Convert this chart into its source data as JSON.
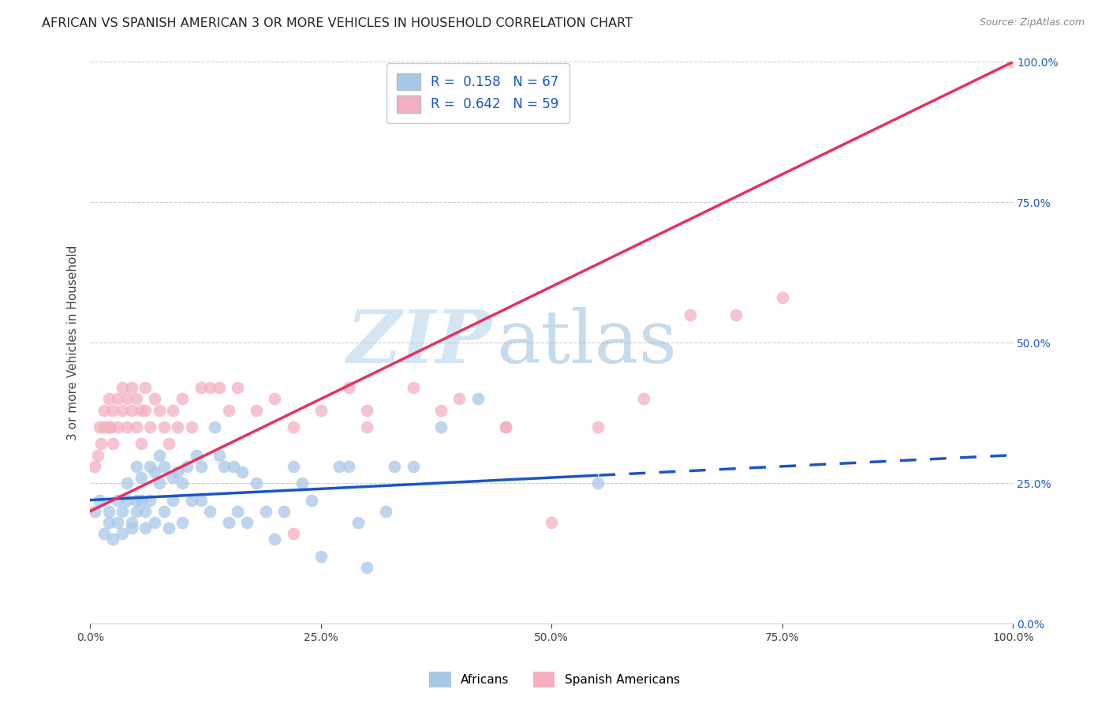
{
  "title": "AFRICAN VS SPANISH AMERICAN 3 OR MORE VEHICLES IN HOUSEHOLD CORRELATION CHART",
  "source": "Source: ZipAtlas.com",
  "ylabel": "3 or more Vehicles in Household",
  "xlim": [
    0,
    100
  ],
  "ylim": [
    0,
    100
  ],
  "xticks": [
    0,
    25,
    50,
    75,
    100
  ],
  "xticklabels": [
    "0.0%",
    "25.0%",
    "50.0%",
    "75.0%",
    "100.0%"
  ],
  "yticks_right": [
    0,
    25,
    50,
    75,
    100
  ],
  "ytick_right_labels": [
    "0.0%",
    "25.0%",
    "50.0%",
    "75.0%",
    "100.0%"
  ],
  "blue_fill_color": "#a8c8e8",
  "pink_fill_color": "#f4b0c0",
  "blue_line_color": "#1a56c4",
  "pink_line_color": "#e83060",
  "legend_R_blue": "R =  0.158",
  "legend_N_blue": "N = 67",
  "legend_R_pink": "R =  0.642",
  "legend_N_pink": "N = 59",
  "legend_label_blue": "Africans",
  "legend_label_pink": "Spanish Americans",
  "grid_color": "#cccccc",
  "background_color": "#ffffff",
  "title_fontsize": 11.5,
  "axis_label_fontsize": 11,
  "tick_fontsize": 10,
  "legend_fontsize": 12,
  "blue_scatter_x": [
    0.5,
    1.0,
    1.5,
    2.0,
    2.0,
    2.5,
    3.0,
    3.0,
    3.5,
    3.5,
    4.0,
    4.0,
    4.5,
    4.5,
    5.0,
    5.0,
    5.0,
    5.5,
    5.5,
    6.0,
    6.0,
    6.5,
    6.5,
    7.0,
    7.0,
    7.5,
    7.5,
    8.0,
    8.0,
    8.5,
    9.0,
    9.0,
    9.5,
    10.0,
    10.0,
    10.5,
    11.0,
    11.5,
    12.0,
    12.0,
    13.0,
    13.5,
    14.0,
    14.5,
    15.0,
    15.5,
    16.0,
    16.5,
    17.0,
    18.0,
    19.0,
    20.0,
    21.0,
    22.0,
    23.0,
    24.0,
    25.0,
    27.0,
    28.0,
    29.0,
    30.0,
    32.0,
    33.0,
    35.0,
    38.0,
    42.0,
    55.0
  ],
  "blue_scatter_y": [
    20,
    22,
    16,
    20,
    18,
    15,
    22,
    18,
    20,
    16,
    25,
    22,
    18,
    17,
    28,
    22,
    20,
    26,
    22,
    20,
    17,
    28,
    22,
    18,
    27,
    25,
    30,
    20,
    28,
    17,
    26,
    22,
    27,
    25,
    18,
    28,
    22,
    30,
    22,
    28,
    20,
    35,
    30,
    28,
    18,
    28,
    20,
    27,
    18,
    25,
    20,
    15,
    20,
    28,
    25,
    22,
    12,
    28,
    28,
    18,
    10,
    20,
    28,
    28,
    35,
    40,
    25
  ],
  "pink_scatter_x": [
    0.5,
    0.8,
    1.0,
    1.2,
    1.5,
    1.5,
    2.0,
    2.0,
    2.2,
    2.5,
    2.5,
    3.0,
    3.0,
    3.5,
    3.5,
    4.0,
    4.0,
    4.5,
    4.5,
    5.0,
    5.0,
    5.5,
    5.5,
    6.0,
    6.0,
    6.5,
    7.0,
    7.5,
    8.0,
    8.5,
    9.0,
    9.5,
    10.0,
    11.0,
    12.0,
    13.0,
    14.0,
    15.0,
    16.0,
    18.0,
    20.0,
    22.0,
    25.0,
    28.0,
    30.0,
    35.0,
    40.0,
    45.0,
    22.0,
    30.0,
    38.0,
    45.0,
    50.0,
    55.0,
    60.0,
    65.0,
    70.0,
    75.0,
    100.0
  ],
  "pink_scatter_y": [
    28,
    30,
    35,
    32,
    38,
    35,
    35,
    40,
    35,
    38,
    32,
    35,
    40,
    42,
    38,
    40,
    35,
    42,
    38,
    40,
    35,
    38,
    32,
    42,
    38,
    35,
    40,
    38,
    35,
    32,
    38,
    35,
    40,
    35,
    42,
    42,
    42,
    38,
    42,
    38,
    40,
    35,
    38,
    42,
    38,
    42,
    40,
    35,
    16,
    35,
    38,
    35,
    18,
    35,
    40,
    55,
    55,
    58,
    100
  ],
  "blue_trend_x0": 0,
  "blue_trend_y0": 22,
  "blue_trend_x1": 100,
  "blue_trend_y1": 30,
  "blue_solid_end": 55,
  "pink_trend_x0": 0,
  "pink_trend_y0": 20,
  "pink_trend_x1": 100,
  "pink_trend_y1": 100
}
